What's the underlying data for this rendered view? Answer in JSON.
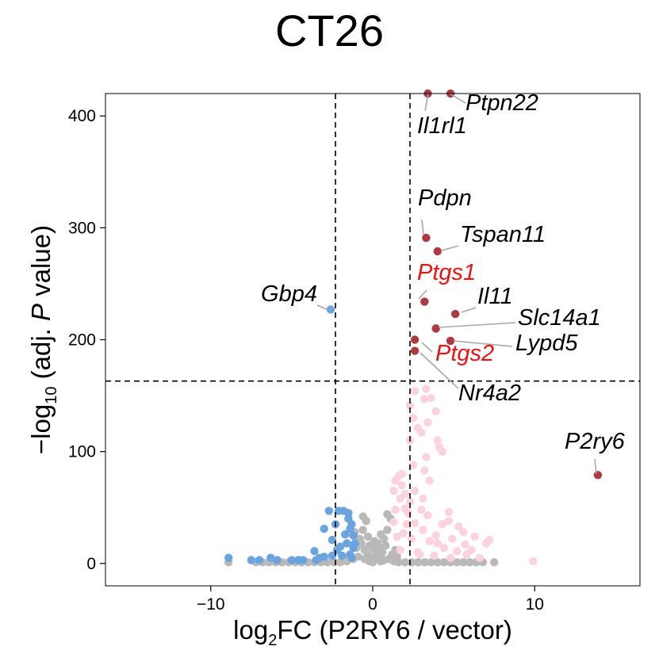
{
  "chart_data": {
    "type": "scatter",
    "title": "CT26",
    "xlabel": {
      "prefix": "log",
      "sub": "2",
      "suffix": "FC (P2RY6 / vector)"
    },
    "ylabel": {
      "prefix": "−log",
      "sub": "10",
      "middle": " (adj. ",
      "italic": "P",
      "suffix": " value)"
    },
    "xlim": [
      -16.5,
      16.5
    ],
    "ylim": [
      -20,
      420
    ],
    "xticks": [
      -10,
      0,
      10
    ],
    "xtick_labels": [
      "−10",
      "0",
      "10"
    ],
    "yticks": [
      0,
      100,
      200,
      300,
      400
    ],
    "ytick_labels": [
      "0",
      "100",
      "200",
      "300",
      "400"
    ],
    "grid": false,
    "thresholds": {
      "x": [
        -2.3,
        2.3
      ],
      "y": 163
    },
    "colors": {
      "up": "#ad3a40",
      "up_minor": "#fbd3dc",
      "down": "#6aa3dd",
      "ns": "#b9b9b9",
      "label_red": "#ee1111",
      "label_black": "#000000",
      "threshold_line": "#000000"
    },
    "series": [
      {
        "category": "up",
        "points": [
          [
            3.4,
            420
          ],
          [
            4.8,
            420
          ],
          [
            3.3,
            291
          ],
          [
            4.0,
            279
          ],
          [
            3.2,
            234
          ],
          [
            5.1,
            223
          ],
          [
            3.9,
            210
          ],
          [
            4.8,
            199
          ],
          [
            2.6,
            200
          ],
          [
            2.6,
            190
          ],
          [
            13.9,
            79
          ]
        ]
      },
      {
        "category": "down",
        "points": [
          [
            -2.6,
            227
          ],
          [
            -8.9,
            5
          ],
          [
            -7.0,
            3
          ],
          [
            -6.3,
            5
          ],
          [
            -5.0,
            3
          ],
          [
            -4.3,
            3
          ],
          [
            -3.6,
            11
          ],
          [
            -3.0,
            31
          ],
          [
            -2.5,
            21
          ],
          [
            -2.3,
            35
          ],
          [
            -2.1,
            47
          ],
          [
            -1.8,
            47
          ],
          [
            -1.5,
            45
          ],
          [
            -1.3,
            35
          ],
          [
            -1.2,
            25
          ],
          [
            -1.6,
            18
          ],
          [
            -2.0,
            15
          ],
          [
            -1.1,
            18
          ],
          [
            -1.4,
            8
          ],
          [
            -1.9,
            7
          ],
          [
            -3.3,
            5
          ],
          [
            -4.6,
            3
          ],
          [
            -1.3,
            5
          ],
          [
            -1.7,
            26
          ],
          [
            -2.2,
            12
          ],
          [
            -5.9,
            3
          ],
          [
            -7.5,
            3
          ],
          [
            -1.5,
            40
          ],
          [
            -1.2,
            14
          ],
          [
            -2.7,
            47
          ],
          [
            -1.4,
            31
          ],
          [
            -3.5,
            3
          ],
          [
            -2.5,
            7
          ],
          [
            -3.0,
            6
          ]
        ]
      },
      {
        "category": "up_minor",
        "points": [
          [
            2.3,
            141
          ],
          [
            2.6,
            154
          ],
          [
            3.3,
            156
          ],
          [
            3.6,
            148
          ],
          [
            3.2,
            147
          ],
          [
            2.5,
            130
          ],
          [
            2.8,
            121
          ],
          [
            3.9,
            136
          ],
          [
            3.4,
            126
          ],
          [
            3.0,
            117
          ],
          [
            2.3,
            110
          ],
          [
            2.5,
            88
          ],
          [
            3.2,
            83
          ],
          [
            3.3,
            95
          ],
          [
            4.1,
            104
          ],
          [
            4.3,
            100
          ],
          [
            4.0,
            110
          ],
          [
            3.5,
            74
          ],
          [
            3.1,
            58
          ],
          [
            1.8,
            80
          ],
          [
            1.6,
            78
          ],
          [
            1.4,
            74
          ],
          [
            1.8,
            70
          ],
          [
            1.3,
            65
          ],
          [
            1.7,
            58
          ],
          [
            2.0,
            49
          ],
          [
            2.3,
            55
          ],
          [
            2.6,
            65
          ],
          [
            3.0,
            48
          ],
          [
            2.6,
            36
          ],
          [
            2.1,
            35
          ],
          [
            1.9,
            27
          ],
          [
            1.5,
            24
          ],
          [
            3.5,
            20
          ],
          [
            3.9,
            25
          ],
          [
            4.3,
            35
          ],
          [
            4.7,
            38
          ],
          [
            5.3,
            33
          ],
          [
            5.6,
            28
          ],
          [
            6.3,
            24
          ],
          [
            7.2,
            21
          ],
          [
            7.0,
            18
          ],
          [
            6.1,
            12
          ],
          [
            5.2,
            11
          ],
          [
            4.4,
            14
          ],
          [
            5.8,
            8
          ],
          [
            6.6,
            5
          ],
          [
            4.8,
            5
          ],
          [
            3.8,
            7
          ],
          [
            2.8,
            10
          ],
          [
            9.9,
            2
          ],
          [
            4.7,
            46
          ],
          [
            3.4,
            43
          ],
          [
            4.0,
            18
          ],
          [
            1.4,
            48
          ],
          [
            2.0,
            62
          ],
          [
            2.2,
            45
          ],
          [
            4.9,
            22
          ],
          [
            3.1,
            30
          ],
          [
            2.4,
            22
          ],
          [
            5.7,
            17
          ],
          [
            1.3,
            37
          ],
          [
            2.9,
            8
          ],
          [
            1.7,
            12
          ]
        ]
      },
      {
        "category": "ns",
        "points": [
          [
            -0.3,
            8
          ],
          [
            0.1,
            3
          ],
          [
            0.0,
            1
          ],
          [
            -0.5,
            12
          ],
          [
            0.3,
            6
          ],
          [
            -0.8,
            22
          ],
          [
            -0.6,
            30
          ],
          [
            -0.4,
            38
          ],
          [
            -1.0,
            14
          ],
          [
            -0.2,
            2
          ],
          [
            0.4,
            14
          ],
          [
            0.7,
            22
          ],
          [
            0.9,
            30
          ],
          [
            1.1,
            40
          ],
          [
            0.6,
            10
          ],
          [
            1.0,
            4
          ],
          [
            1.3,
            2
          ],
          [
            1.6,
            1
          ],
          [
            2.0,
            1
          ],
          [
            2.4,
            1
          ],
          [
            2.8,
            1
          ],
          [
            3.2,
            1
          ],
          [
            3.6,
            1
          ],
          [
            4.0,
            1
          ],
          [
            4.4,
            1
          ],
          [
            4.8,
            1
          ],
          [
            5.2,
            1
          ],
          [
            5.6,
            1
          ],
          [
            6.0,
            1
          ],
          [
            6.4,
            1
          ],
          [
            6.8,
            1
          ],
          [
            7.5,
            1
          ],
          [
            -1.2,
            4
          ],
          [
            -1.6,
            2
          ],
          [
            -2.0,
            1
          ],
          [
            -2.4,
            1
          ],
          [
            -2.8,
            1
          ],
          [
            -3.2,
            1
          ],
          [
            -3.6,
            1
          ],
          [
            -4.0,
            1
          ],
          [
            -4.4,
            1
          ],
          [
            -4.8,
            1
          ],
          [
            -5.2,
            1
          ],
          [
            -5.6,
            1
          ],
          [
            -6.0,
            1
          ],
          [
            -6.4,
            1
          ],
          [
            -6.8,
            1
          ],
          [
            -7.2,
            1
          ],
          [
            -8.9,
            1
          ],
          [
            0.8,
            16
          ],
          [
            -0.7,
            18
          ],
          [
            0.2,
            10
          ],
          [
            -0.1,
            5
          ],
          [
            0.5,
            2
          ],
          [
            1.2,
            8
          ],
          [
            -0.9,
            6
          ],
          [
            0.5,
            26
          ],
          [
            -0.6,
            42
          ],
          [
            0.9,
            44
          ],
          [
            -0.3,
            24
          ],
          [
            0.3,
            18
          ],
          [
            -1.1,
            28
          ],
          [
            1.4,
            12
          ],
          [
            -0.5,
            4
          ],
          [
            0.7,
            3
          ],
          [
            1.5,
            6
          ],
          [
            -1.4,
            6
          ],
          [
            0.0,
            14
          ],
          [
            0.1,
            20
          ],
          [
            -0.2,
            16
          ]
        ]
      }
    ],
    "annotations": [
      {
        "text": "Ptpn22",
        "x": 4.8,
        "y": 420,
        "color": "black"
      },
      {
        "text": "Il1rl1",
        "x": 3.4,
        "y": 420,
        "color": "black"
      },
      {
        "text": "Pdpn",
        "x": 3.3,
        "y": 291,
        "color": "black"
      },
      {
        "text": "Tspan11",
        "x": 4.0,
        "y": 279,
        "color": "black"
      },
      {
        "text": "Ptgs1",
        "x": 3.2,
        "y": 234,
        "color": "red"
      },
      {
        "text": "Il11",
        "x": 5.1,
        "y": 223,
        "color": "black"
      },
      {
        "text": "Slc14a1",
        "x": 3.9,
        "y": 210,
        "color": "black"
      },
      {
        "text": "Lypd5",
        "x": 4.8,
        "y": 199,
        "color": "black"
      },
      {
        "text": "Ptgs2",
        "x": 2.6,
        "y": 200,
        "color": "red"
      },
      {
        "text": "Nr4a2",
        "x": 2.6,
        "y": 190,
        "color": "black"
      },
      {
        "text": "Gbp4",
        "x": -2.6,
        "y": 227,
        "color": "black"
      },
      {
        "text": "P2ry6",
        "x": 13.9,
        "y": 79,
        "color": "black"
      }
    ]
  }
}
